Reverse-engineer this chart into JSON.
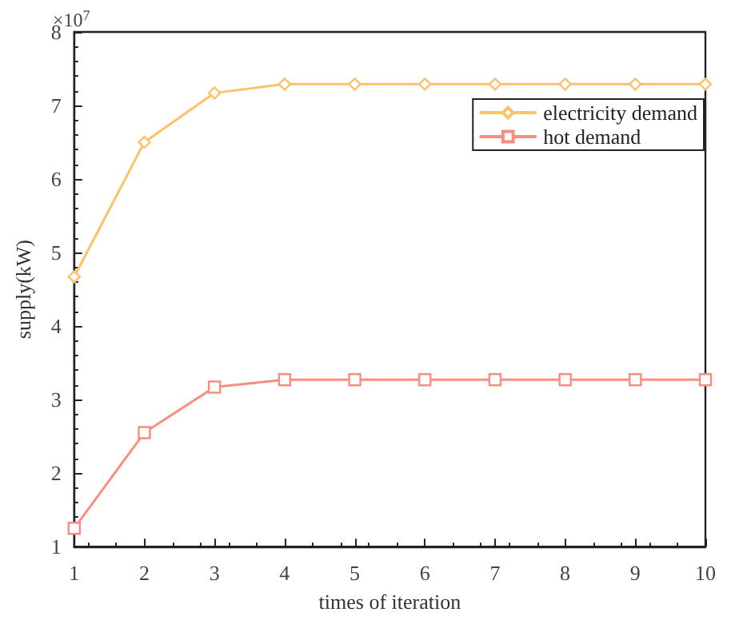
{
  "chart_data": {
    "type": "line",
    "xlabel": "times of iteration",
    "ylabel": "supply(kW)",
    "annotations": [
      "×10$^{7}$"
    ],
    "x": [
      1,
      2,
      3,
      4,
      5,
      6,
      7,
      8,
      9,
      10
    ],
    "series": [
      {
        "name": "electricity demand",
        "color": "#fdc16a",
        "marker": "diamond",
        "values": [
          4.67,
          6.5,
          7.17,
          7.29,
          7.29,
          7.29,
          7.29,
          7.29,
          7.29,
          7.29
        ]
      },
      {
        "name": "hot demand",
        "color": "#fa8c80",
        "marker": "square",
        "values": [
          1.25,
          2.55,
          3.17,
          3.27,
          3.27,
          3.27,
          3.27,
          3.27,
          3.27,
          3.27
        ]
      }
    ],
    "xlim": [
      1,
      10
    ],
    "xticks": [
      1,
      2,
      3,
      4,
      5,
      6,
      7,
      8,
      9,
      10
    ],
    "ylim": [
      1,
      8
    ],
    "yticks": [
      1,
      2,
      3,
      4,
      5,
      6,
      7,
      8
    ],
    "grid": false,
    "legend": "top right",
    "line_style": "solid"
  }
}
